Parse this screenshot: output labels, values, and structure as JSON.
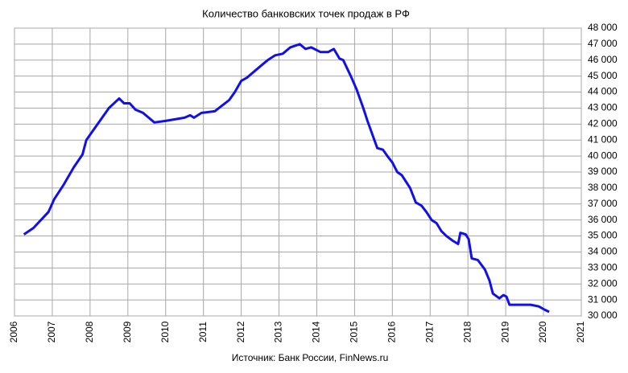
{
  "chart_data": {
    "type": "line",
    "title": "Количество банковских точек продаж в РФ",
    "source": "Источник: Банк России, FinNews.ru",
    "xlim": [
      2006,
      2021
    ],
    "xticks": [
      2006,
      2007,
      2008,
      2009,
      2010,
      2011,
      2012,
      2013,
      2014,
      2015,
      2016,
      2017,
      2018,
      2019,
      2020,
      2021
    ],
    "ylim": [
      30000,
      48000
    ],
    "yticks": [
      {
        "value": 30000,
        "label": "30 000"
      },
      {
        "value": 31000,
        "label": "31 000"
      },
      {
        "value": 32000,
        "label": "32 000"
      },
      {
        "value": 33000,
        "label": "33 000"
      },
      {
        "value": 34000,
        "label": "34 000"
      },
      {
        "value": 35000,
        "label": "35 000"
      },
      {
        "value": 36000,
        "label": "36 000"
      },
      {
        "value": 37000,
        "label": "37 000"
      },
      {
        "value": 38000,
        "label": "38 000"
      },
      {
        "value": 39000,
        "label": "39 000"
      },
      {
        "value": 40000,
        "label": "40 000"
      },
      {
        "value": 41000,
        "label": "41 000"
      },
      {
        "value": 42000,
        "label": "42 000"
      },
      {
        "value": 43000,
        "label": "43 000"
      },
      {
        "value": 44000,
        "label": "44 000"
      },
      {
        "value": 45000,
        "label": "45 000"
      },
      {
        "value": 46000,
        "label": "46 000"
      },
      {
        "value": 47000,
        "label": "47 000"
      },
      {
        "value": 48000,
        "label": "48 000"
      }
    ],
    "grid": true,
    "color": "#1010ee",
    "x": [
      2006.25,
      2006.5,
      2006.9,
      2007.05,
      2007.3,
      2007.57,
      2007.8,
      2007.9,
      2008.2,
      2008.5,
      2008.77,
      2008.9,
      2009.05,
      2009.2,
      2009.4,
      2009.7,
      2010.0,
      2010.5,
      2010.65,
      2010.75,
      2010.95,
      2011.3,
      2011.68,
      2011.83,
      2012.0,
      2012.15,
      2012.35,
      2012.55,
      2012.7,
      2012.9,
      2013.1,
      2013.3,
      2013.55,
      2013.7,
      2013.85,
      2014.1,
      2014.3,
      2014.45,
      2014.6,
      2014.7,
      2014.9,
      2015.05,
      2015.23,
      2015.34,
      2015.6,
      2015.75,
      2015.9,
      2016.0,
      2016.13,
      2016.25,
      2016.47,
      2016.62,
      2016.77,
      2016.9,
      2017.04,
      2017.17,
      2017.3,
      2017.43,
      2017.6,
      2017.74,
      2017.8,
      2017.94,
      2018.02,
      2018.1,
      2018.26,
      2018.45,
      2018.57,
      2018.66,
      2018.83,
      2018.94,
      2019.02,
      2019.1,
      2019.45,
      2019.66,
      2019.87,
      2020.02,
      2020.15
    ],
    "values": [
      35100,
      35500,
      36500,
      37300,
      38200,
      39300,
      40100,
      41000,
      42000,
      43000,
      43600,
      43300,
      43300,
      42900,
      42700,
      42100,
      42200,
      42400,
      42550,
      42400,
      42700,
      42800,
      43500,
      44000,
      44700,
      44900,
      45300,
      45700,
      46000,
      46300,
      46400,
      46800,
      47000,
      46700,
      46800,
      46500,
      46500,
      46700,
      46100,
      46000,
      45000,
      44200,
      43000,
      42200,
      40500,
      40400,
      39900,
      39600,
      39000,
      38800,
      38000,
      37100,
      36900,
      36500,
      36000,
      35800,
      35300,
      35000,
      34700,
      34500,
      35200,
      35100,
      34800,
      33600,
      33500,
      32900,
      32200,
      31400,
      31100,
      31300,
      31200,
      30700,
      30700,
      30700,
      30600,
      30400,
      30250
    ]
  }
}
